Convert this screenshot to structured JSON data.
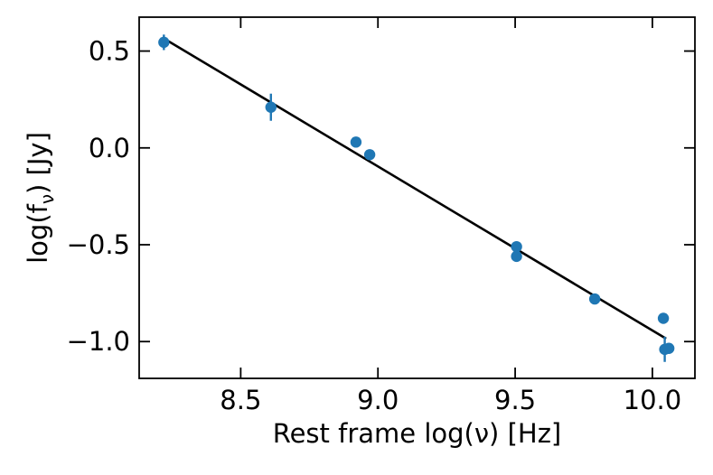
{
  "chart_data": {
    "type": "scatter",
    "title": "",
    "xlabel": "Rest frame log(ν) [Hz]",
    "ylabel_main": "log(f",
    "ylabel_sub": "ν",
    "ylabel_tail": ") [Jy]",
    "xlim": [
      8.13,
      10.155
    ],
    "ylim": [
      -1.19,
      0.675
    ],
    "xticks": [
      {
        "value": 8.5,
        "label": "8.5"
      },
      {
        "value": 9.0,
        "label": "9.0"
      },
      {
        "value": 9.5,
        "label": "9.5"
      },
      {
        "value": 10.0,
        "label": "10.0"
      }
    ],
    "yticks": [
      {
        "value": 0.5,
        "label": "0.5"
      },
      {
        "value": 0.0,
        "label": "0.0"
      },
      {
        "value": -0.5,
        "label": "−0.5"
      },
      {
        "value": -1.0,
        "label": "−1.0"
      }
    ],
    "grid": false,
    "legend": "none",
    "series": [
      {
        "kind": "points",
        "color": "#1f77b4",
        "points": [
          {
            "x": 8.22,
            "y": 0.545,
            "err": 0.04
          },
          {
            "x": 8.61,
            "y": 0.21,
            "err": 0.07
          },
          {
            "x": 8.92,
            "y": 0.03,
            "err": 0.0
          },
          {
            "x": 8.97,
            "y": -0.035,
            "err": 0.0
          },
          {
            "x": 9.505,
            "y": -0.51,
            "err": 0.0
          },
          {
            "x": 9.505,
            "y": -0.56,
            "err": 0.0
          },
          {
            "x": 9.79,
            "y": -0.78,
            "err": 0.0
          },
          {
            "x": 10.04,
            "y": -0.88,
            "err": 0.0
          },
          {
            "x": 10.045,
            "y": -1.04,
            "err": 0.065
          },
          {
            "x": 10.06,
            "y": -1.035,
            "err": 0.0
          }
        ]
      },
      {
        "kind": "fit-line",
        "color": "#000000",
        "x": [
          8.22,
          10.05
        ],
        "y": [
          0.565,
          -0.985
        ]
      }
    ]
  }
}
